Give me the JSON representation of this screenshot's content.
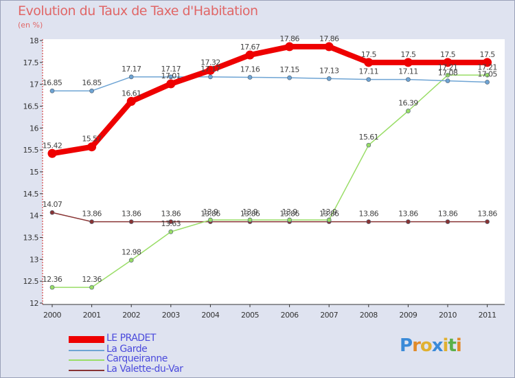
{
  "header": {
    "title": "Evolution du Taux de Taxe d'Habitation",
    "subtitle": "(en %)"
  },
  "logo": {
    "letters": [
      "P",
      "r",
      "o",
      "x",
      "i",
      "t",
      "i"
    ],
    "colors": [
      "#3a8ad8",
      "#e08a2a",
      "#e0b030",
      "#3a8ad8",
      "#e0b030",
      "#5ab04a",
      "#e08a2a"
    ]
  },
  "legend": [
    {
      "label": "LE PRADET",
      "color": "#ee0000"
    },
    {
      "label": "La Garde",
      "color": "#6ea4d4"
    },
    {
      "label": "Carqueiranne",
      "color": "#99dd66"
    },
    {
      "label": "La Valette-du-Var",
      "color": "#883333"
    }
  ],
  "chart_data": {
    "type": "line",
    "title": "Evolution du Taux de Taxe d'Habitation",
    "subtitle": "(en %)",
    "x": [
      "2000",
      "2001",
      "2002",
      "2003",
      "2004",
      "2005",
      "2006",
      "2007",
      "2008",
      "2009",
      "2010",
      "2011"
    ],
    "ylim": [
      12,
      18
    ],
    "yticks": [
      "12",
      "12.5",
      "13",
      "13.5",
      "14",
      "14.5",
      "15",
      "15.5",
      "16",
      "16.5",
      "17",
      "17.5",
      "18"
    ],
    "grid": false,
    "legend_position": "bottom-left",
    "series": [
      {
        "name": "LE PRADET",
        "color": "#ee0000",
        "values": [
          15.42,
          15.57,
          16.61,
          17.01,
          17.32,
          17.67,
          17.86,
          17.86,
          17.5,
          17.5,
          17.5,
          17.5
        ],
        "labels": [
          "15.42",
          "15.57",
          "16.61",
          "17.01",
          "17.32",
          "17.67",
          "17.86",
          "17.86",
          "17.5",
          "17.5",
          "17.5",
          "17.5"
        ]
      },
      {
        "name": "La Garde",
        "color": "#6ea4d4",
        "values": [
          16.85,
          16.85,
          17.17,
          17.17,
          17.17,
          17.16,
          17.15,
          17.13,
          17.11,
          17.11,
          17.08,
          17.05
        ],
        "labels": [
          "16.85",
          "16.85",
          "17.17",
          "17.17",
          "17.17",
          "17.16",
          "17.15",
          "17.13",
          "17.11",
          "17.11",
          "17.08",
          "17.05"
        ]
      },
      {
        "name": "Carqueiranne",
        "color": "#99dd66",
        "values": [
          12.36,
          12.36,
          12.98,
          13.63,
          13.9,
          13.9,
          13.9,
          13.9,
          15.61,
          16.39,
          17.21,
          17.21
        ],
        "labels": [
          "12.36",
          "12.36",
          "12.98",
          "13.63",
          "13.9",
          "13.9",
          "13.9",
          "13.9",
          "15.61",
          "16.39",
          "17.21",
          "17.21"
        ]
      },
      {
        "name": "La Valette-du-Var",
        "color": "#883333",
        "values": [
          14.07,
          13.86,
          13.86,
          13.86,
          13.86,
          13.86,
          13.86,
          13.86,
          13.86,
          13.86,
          13.86,
          13.86
        ],
        "labels": [
          "14.07",
          "13.86",
          "13.86",
          "13.86",
          "13.86",
          "13.86",
          "13.86",
          "13.86",
          "13.86",
          "13.86",
          "13.86",
          "13.86"
        ]
      }
    ]
  }
}
